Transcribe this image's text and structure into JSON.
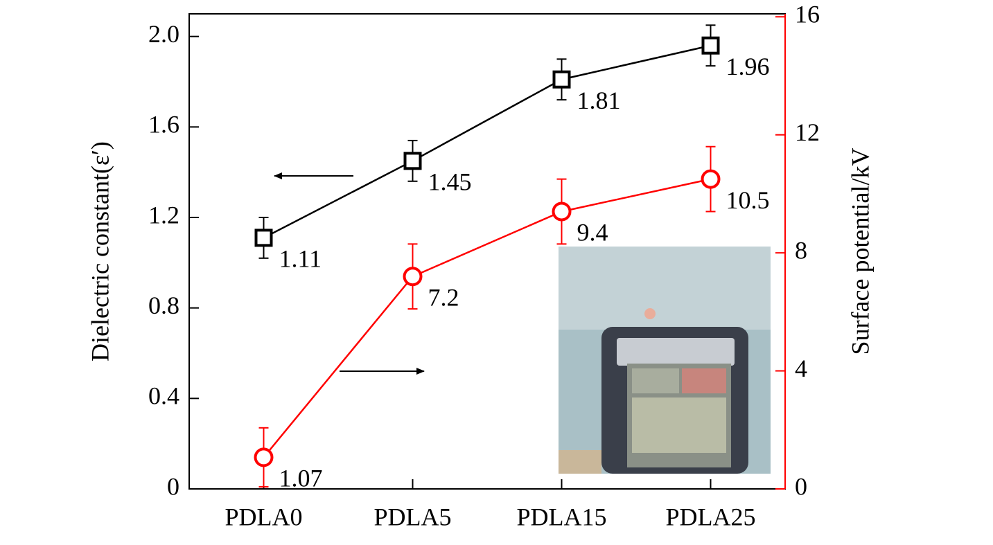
{
  "chart_data": {
    "type": "line",
    "categories": [
      "PDLA0",
      "PDLA5",
      "PDLA15",
      "PDLA25"
    ],
    "y_label": "Dielectric constant(ε′)",
    "y2_label": "Surface potential/kV",
    "ylim": [
      0,
      2.1
    ],
    "yticks": [
      0,
      0.4,
      0.8,
      1.2,
      1.6,
      {
        "value": 2,
        "label": "2.0"
      }
    ],
    "y2lim": [
      0,
      16.1
    ],
    "y2ticks": [
      0,
      4,
      8,
      12,
      16
    ],
    "y2_color": "#ff0000",
    "series": [
      {
        "color": "#000000",
        "marker": "square",
        "values": [
          1.11,
          1.45,
          1.81,
          1.96
        ],
        "errors": [
          0.09,
          0.09,
          0.09,
          0.09
        ]
      },
      {
        "color": "#ff0000",
        "marker": "circle",
        "axis": "y2",
        "values": [
          1.07,
          7.2,
          9.4,
          10.5
        ],
        "errors": [
          1.0,
          1.1,
          1.1,
          1.1
        ]
      }
    ]
  }
}
